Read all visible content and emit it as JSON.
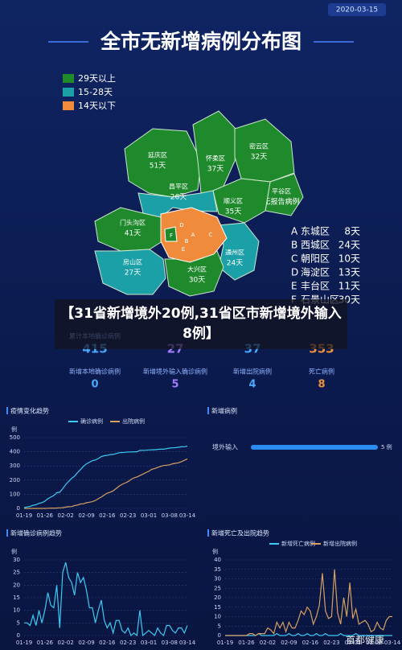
{
  "header": {
    "date": "2020-03-15",
    "title": "全市无新增病例分布图"
  },
  "map": {
    "legend": [
      {
        "label": "29天以上",
        "color": "#1f8a2c"
      },
      {
        "label": "15-28天",
        "color": "#1aa0a6"
      },
      {
        "label": "14天以下",
        "color": "#f08b3c"
      }
    ],
    "districts": [
      {
        "name": "延庆区",
        "days": "51天",
        "color": "#1f8a2c"
      },
      {
        "name": "怀柔区",
        "days": "37天",
        "color": "#1f8a2c"
      },
      {
        "name": "密云区",
        "days": "32天",
        "color": "#1f8a2c"
      },
      {
        "name": "昌平区",
        "days": "26天",
        "color": "#1aa0a6"
      },
      {
        "name": "平谷区",
        "days": "无报告病例",
        "color": "#1f8a2c"
      },
      {
        "name": "顺义区",
        "days": "35天",
        "color": "#1f8a2c"
      },
      {
        "name": "门头沟区",
        "days": "41天",
        "color": "#1f8a2c"
      },
      {
        "name": "通州区",
        "days": "24天",
        "color": "#1aa0a6"
      },
      {
        "name": "房山区",
        "days": "27天",
        "color": "#1aa0a6"
      },
      {
        "name": "大兴区",
        "days": "30天",
        "color": "#1f8a2c"
      }
    ],
    "letters": [
      {
        "letter": "A",
        "name": "东城区",
        "days": "8天"
      },
      {
        "letter": "B",
        "name": "西城区",
        "days": "24天"
      },
      {
        "letter": "C",
        "name": "朝阳区",
        "days": "10天"
      },
      {
        "letter": "D",
        "name": "海淀区",
        "days": "13天"
      },
      {
        "letter": "E",
        "name": "丰台区",
        "days": "11天"
      },
      {
        "letter": "F",
        "name": "石景山区",
        "days": "30天"
      }
    ]
  },
  "headline": "【31省新增境外20例,31省区市新增境外输入8例】",
  "stats": [
    [
      {
        "label": "累计本地确诊病例",
        "value": 415,
        "color": "#4aa8ff"
      },
      {
        "value": 27,
        "color": "#a57cff"
      },
      {
        "value": 37,
        "color": "#4aa8ff"
      },
      {
        "value": 353,
        "color": "#f0913c"
      }
    ],
    [
      {
        "label": "新增本地确诊病例",
        "value": 0,
        "color": "#4aa8ff"
      },
      {
        "label": "新增境外输入确诊病例",
        "value": 5,
        "color": "#a57cff"
      },
      {
        "label": "新增出院病例",
        "value": 4,
        "color": "#4aa8ff"
      },
      {
        "label": "死亡病例",
        "value": 8,
        "color": "#f0913c"
      }
    ]
  ],
  "charts": [
    {
      "type": "line",
      "title": "疫情变化趋势",
      "y_label": "例",
      "ylim": [
        0,
        500
      ],
      "yticks": [
        0,
        100,
        200,
        300,
        400,
        500
      ],
      "categories": [
        "01-19",
        null,
        null,
        null,
        null,
        null,
        null,
        "01-26",
        null,
        null,
        null,
        null,
        null,
        null,
        "02-02",
        null,
        null,
        null,
        null,
        null,
        null,
        "02-09",
        null,
        null,
        null,
        null,
        null,
        null,
        "02-16",
        null,
        null,
        null,
        null,
        null,
        null,
        "02-23",
        null,
        null,
        null,
        null,
        null,
        null,
        "03-01",
        null,
        null,
        null,
        null,
        null,
        null,
        "03-08",
        null,
        null,
        null,
        null,
        null,
        "03-14"
      ],
      "series": [
        {
          "name": "确诊病例",
          "color": "#3ccaf2",
          "values": [
            5,
            10,
            14,
            22,
            26,
            36,
            41,
            51,
            68,
            80,
            91,
            111,
            114,
            139,
            168,
            191,
            212,
            228,
            253,
            274,
            297,
            315,
            326,
            337,
            342,
            352,
            366,
            372,
            375,
            380,
            381,
            387,
            393,
            395,
            396,
            399,
            399,
            400,
            400,
            410,
            410,
            411,
            413,
            414,
            414,
            417,
            418,
            418,
            422,
            426,
            428,
            429,
            432,
            435,
            436,
            440
          ]
        },
        {
          "name": "出院病例",
          "color": "#d6a062",
          "values": [
            0,
            0,
            0,
            0,
            0,
            0,
            0,
            0,
            1,
            2,
            2,
            3,
            4,
            5,
            9,
            12,
            13,
            20,
            24,
            31,
            33,
            40,
            44,
            48,
            56,
            69,
            80,
            95,
            108,
            114,
            124,
            140,
            157,
            170,
            179,
            189,
            204,
            216,
            222,
            232,
            242,
            253,
            262,
            276,
            282,
            289,
            297,
            303,
            305,
            308,
            315,
            319,
            322,
            330,
            340,
            350
          ]
        }
      ]
    },
    {
      "type": "hbar",
      "title": "新增病例",
      "xlim": [
        0,
        5
      ],
      "categories": [
        "境外输入"
      ],
      "values": [
        5
      ],
      "value_labels": [
        "5 例"
      ],
      "color": "#2a8cf0"
    },
    {
      "type": "line",
      "title": "新增确诊病例趋势",
      "y_label": "例",
      "ylim": [
        0,
        30
      ],
      "yticks": [
        0,
        5,
        10,
        15,
        20,
        25,
        30
      ],
      "categories": [
        "01-19",
        null,
        null,
        null,
        null,
        null,
        null,
        "01-26",
        null,
        null,
        null,
        null,
        null,
        null,
        "02-02",
        null,
        null,
        null,
        null,
        null,
        null,
        "02-09",
        null,
        null,
        null,
        null,
        null,
        null,
        "02-16",
        null,
        null,
        null,
        null,
        null,
        null,
        "02-23",
        null,
        null,
        null,
        null,
        null,
        null,
        "03-01",
        null,
        null,
        null,
        null,
        null,
        null,
        "03-08",
        null,
        null,
        null,
        null,
        null,
        "03-14"
      ],
      "series": [
        {
          "color": "#3ccaf2",
          "values": [
            5,
            5,
            4,
            8,
            4,
            10,
            5,
            10,
            17,
            12,
            11,
            20,
            3,
            25,
            29,
            23,
            21,
            16,
            25,
            21,
            23,
            18,
            11,
            11,
            5,
            10,
            14,
            6,
            3,
            5,
            1,
            6,
            6,
            2,
            1,
            3,
            0,
            1,
            0,
            10,
            0,
            1,
            2,
            1,
            0,
            3,
            1,
            0,
            4,
            4,
            2,
            1,
            3,
            3,
            1,
            4
          ]
        }
      ]
    },
    {
      "type": "line",
      "title": "新增死亡及出院趋势",
      "y_label": "例",
      "ylim": [
        0,
        40
      ],
      "yticks": [
        0,
        5,
        10,
        15,
        20,
        25,
        30,
        35,
        40
      ],
      "categories": [
        "01-19",
        null,
        null,
        null,
        null,
        null,
        null,
        "01-26",
        null,
        null,
        null,
        null,
        null,
        null,
        "02-02",
        null,
        null,
        null,
        null,
        null,
        null,
        "02-09",
        null,
        null,
        null,
        null,
        null,
        null,
        "02-16",
        null,
        null,
        null,
        null,
        null,
        null,
        "02-23",
        null,
        null,
        null,
        null,
        null,
        null,
        "03-01",
        null,
        null,
        null,
        null,
        null,
        null,
        "03-08",
        null,
        null,
        null,
        null,
        null,
        "03-14"
      ],
      "series": [
        {
          "name": "新增死亡病例",
          "color": "#3ccaf2",
          "values": [
            0,
            0,
            0,
            0,
            0,
            0,
            0,
            0,
            0,
            0,
            0,
            1,
            0,
            0,
            0,
            0,
            0,
            1,
            0,
            0,
            0,
            1,
            0,
            0,
            1,
            0,
            0,
            1,
            0,
            0,
            1,
            0,
            0,
            1,
            0,
            0,
            0,
            0,
            1,
            0,
            0,
            0,
            0,
            1,
            0,
            0,
            0,
            0,
            0,
            0,
            0,
            0,
            0,
            0,
            0,
            0
          ]
        },
        {
          "name": "新增出院病例",
          "color": "#d6a062",
          "values": [
            0,
            0,
            0,
            0,
            0,
            0,
            0,
            0,
            1,
            1,
            0,
            1,
            1,
            1,
            4,
            3,
            1,
            7,
            4,
            7,
            2,
            7,
            4,
            4,
            8,
            13,
            11,
            15,
            13,
            6,
            10,
            16,
            33,
            13,
            9,
            10,
            35,
            12,
            6,
            20,
            10,
            28,
            9,
            14,
            6,
            7,
            8,
            6,
            2,
            3,
            7,
            4,
            3,
            8,
            10,
            10
          ]
        }
      ]
    }
  ],
  "watermark": "首都健康"
}
